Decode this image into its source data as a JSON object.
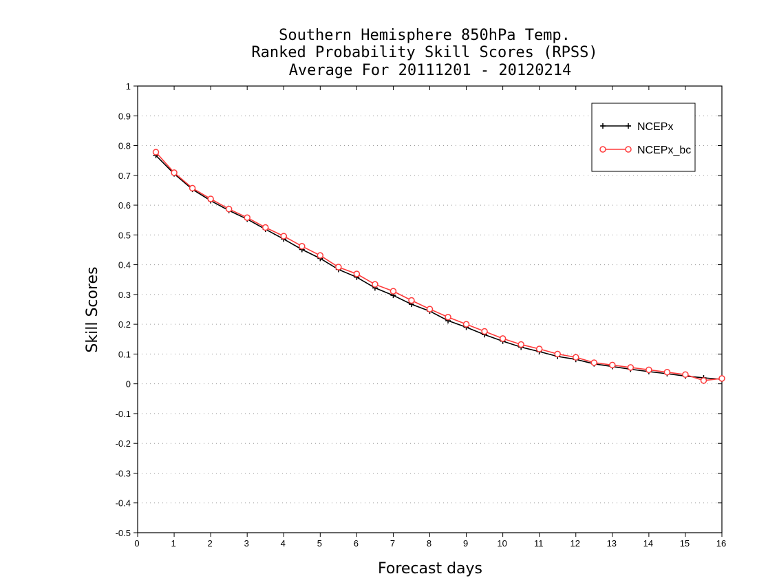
{
  "chart_data": {
    "type": "line",
    "title_lines": [
      "Southern Hemisphere 850hPa Temp.",
      "Ranked Probability Skill Scores (RPSS)",
      "Average For 20111201 - 20120214"
    ],
    "xlabel": "Forecast days",
    "ylabel": "Skill Scores",
    "xlim": [
      0,
      16
    ],
    "ylim": [
      -0.5,
      1
    ],
    "x_ticks": [
      0,
      1,
      2,
      3,
      4,
      5,
      6,
      7,
      8,
      9,
      10,
      11,
      12,
      13,
      14,
      15,
      16
    ],
    "y_ticks": [
      -0.5,
      -0.4,
      -0.3,
      -0.2,
      -0.1,
      0,
      0.1,
      0.2,
      0.3,
      0.4,
      0.5,
      0.6,
      0.7,
      0.8,
      0.9,
      1
    ],
    "y_tick_labels": [
      "-0.5",
      "-0.4",
      "-0.3",
      "-0.2",
      "-0.1",
      "0",
      "0.1",
      "0.2",
      "0.3",
      "0.4",
      "0.5",
      "0.6",
      "0.7",
      "0.8",
      "0.9",
      "1"
    ],
    "grid": "horizontal dotted",
    "legend_position": "top-right",
    "x": [
      0.5,
      1,
      1.5,
      2,
      2.5,
      3,
      3.5,
      4,
      4.5,
      5,
      5.5,
      6,
      6.5,
      7,
      7.5,
      8,
      8.5,
      9,
      9.5,
      10,
      10.5,
      11,
      11.5,
      12,
      12.5,
      13,
      13.5,
      14,
      14.5,
      15,
      15.5,
      16
    ],
    "series": [
      {
        "name": "NCEPx",
        "color": "#000000",
        "marker": "plus",
        "values": [
          0.767,
          0.705,
          0.653,
          0.615,
          0.582,
          0.553,
          0.519,
          0.486,
          0.451,
          0.421,
          0.384,
          0.358,
          0.322,
          0.297,
          0.267,
          0.244,
          0.212,
          0.19,
          0.165,
          0.143,
          0.123,
          0.108,
          0.092,
          0.082,
          0.067,
          0.058,
          0.049,
          0.041,
          0.034,
          0.026,
          0.02,
          0.015
        ]
      },
      {
        "name": "NCEPx_bc",
        "color": "#ff3b3b",
        "marker": "circle",
        "values": [
          0.778,
          0.709,
          0.657,
          0.621,
          0.587,
          0.558,
          0.525,
          0.496,
          0.462,
          0.431,
          0.392,
          0.369,
          0.334,
          0.311,
          0.28,
          0.251,
          0.224,
          0.2,
          0.176,
          0.152,
          0.132,
          0.117,
          0.1,
          0.089,
          0.071,
          0.063,
          0.055,
          0.047,
          0.039,
          0.031,
          0.011,
          0.018
        ]
      }
    ]
  }
}
